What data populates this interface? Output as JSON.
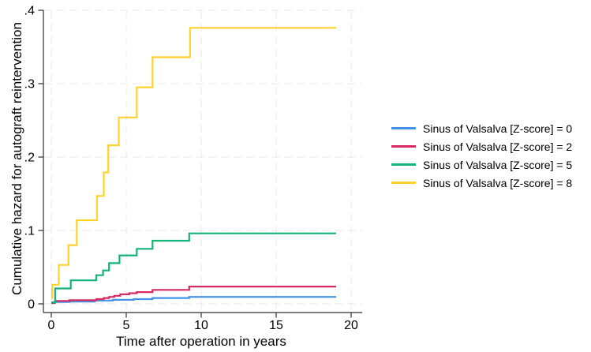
{
  "chart_data": {
    "type": "line",
    "subtype": "step-function-cumulative-hazard",
    "title": "",
    "xlabel": "Time after operation in years",
    "ylabel": "Cumulative hazard for autograft reintervention",
    "xlim": [
      0,
      20.8
    ],
    "ylim": [
      0,
      0.4
    ],
    "xticks": [
      0,
      5,
      10,
      15,
      20
    ],
    "xtick_labels": [
      "0",
      "5",
      "10",
      "15",
      "20"
    ],
    "yticks": [
      0,
      0.1,
      0.2,
      0.3,
      0.4
    ],
    "ytick_labels": [
      "0",
      ".1",
      ".2",
      ".3",
      ".4"
    ],
    "grid": "both-axes dashed light gray",
    "grid_color": "#e7e7e7",
    "axis_color": "#2f2f2f",
    "legend_position": "right-outside",
    "end_time_years": 19,
    "series": [
      {
        "name": "Sinus of Valsalva [Z-score] = 0",
        "color": "#4292e6",
        "steps": [
          [
            0,
            0.001
          ],
          [
            0.2,
            0.0025
          ],
          [
            1.2,
            0.003
          ],
          [
            2.9,
            0.0045
          ],
          [
            4.1,
            0.0055
          ],
          [
            5.5,
            0.0065
          ],
          [
            6.75,
            0.008
          ],
          [
            9.2,
            0.0095
          ]
        ]
      },
      {
        "name": "Sinus of Valsalva [Z-score] = 2",
        "color": "#d62a60",
        "steps": [
          [
            0,
            0.0013
          ],
          [
            0.25,
            0.004
          ],
          [
            1.2,
            0.005
          ],
          [
            3.0,
            0.0065
          ],
          [
            3.5,
            0.008
          ],
          [
            3.85,
            0.0095
          ],
          [
            4.2,
            0.011
          ],
          [
            4.6,
            0.013
          ],
          [
            5.2,
            0.0145
          ],
          [
            5.7,
            0.016
          ],
          [
            6.75,
            0.019
          ],
          [
            9.2,
            0.0235
          ]
        ]
      },
      {
        "name": "Sinus of Valsalva [Z-score] = 5",
        "color": "#14b377",
        "steps": [
          [
            0,
            0.002
          ],
          [
            0.26,
            0.021
          ],
          [
            1.3,
            0.032
          ],
          [
            3.0,
            0.039
          ],
          [
            3.45,
            0.0455
          ],
          [
            3.85,
            0.0555
          ],
          [
            4.55,
            0.066
          ],
          [
            5.7,
            0.075
          ],
          [
            6.75,
            0.086
          ],
          [
            9.2,
            0.096
          ]
        ]
      },
      {
        "name": "Sinus of Valsalva [Z-score] = 8",
        "color": "#ffd22b",
        "steps": [
          [
            0,
            0.008
          ],
          [
            0.07,
            0.026
          ],
          [
            0.5,
            0.053
          ],
          [
            1.15,
            0.08
          ],
          [
            1.7,
            0.114
          ],
          [
            3.05,
            0.147
          ],
          [
            3.5,
            0.179
          ],
          [
            3.8,
            0.216
          ],
          [
            4.5,
            0.254
          ],
          [
            5.7,
            0.295
          ],
          [
            6.75,
            0.336
          ],
          [
            9.25,
            0.376
          ]
        ]
      }
    ]
  }
}
